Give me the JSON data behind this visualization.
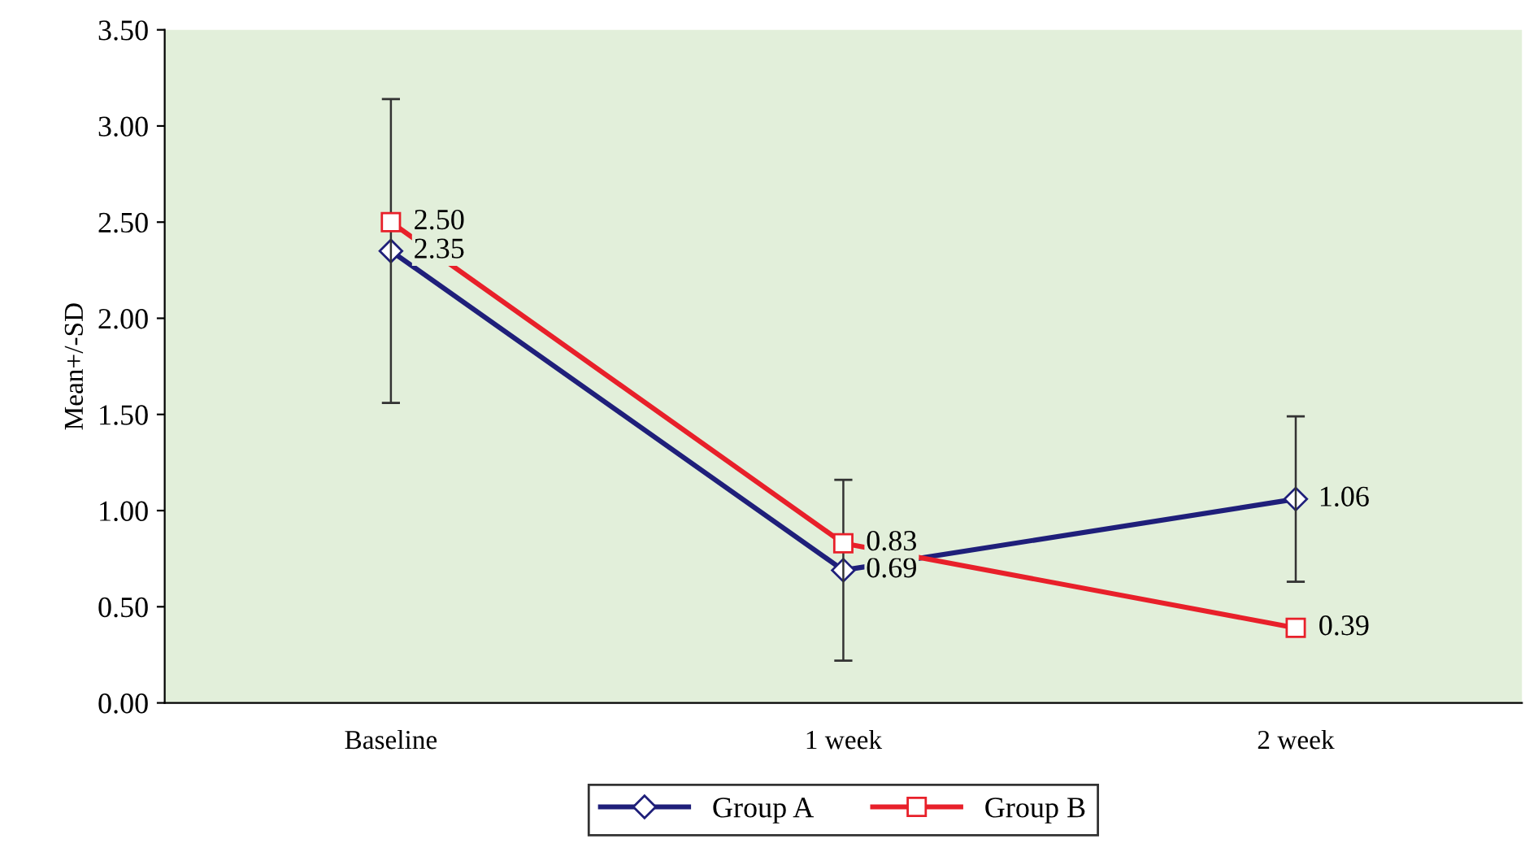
{
  "chart_data": {
    "type": "line",
    "ylabel": "Mean+/-SD",
    "categories": [
      "Baseline",
      "1 week",
      "2 week"
    ],
    "series": [
      {
        "name": "Group A",
        "color": "#1f1f7a",
        "values": [
          2.35,
          0.69,
          1.06
        ],
        "value_labels": [
          "2.35",
          "0.69",
          "1.06"
        ],
        "marker": "diamond",
        "errors": [
          0.79,
          0.47,
          0.43
        ]
      },
      {
        "name": "Group B",
        "color": "#e8202a",
        "values": [
          2.5,
          0.83,
          0.39
        ],
        "value_labels": [
          "2.50",
          "0.83",
          "0.39"
        ],
        "marker": "square"
      }
    ],
    "ylim": [
      0,
      3.5
    ],
    "yticks": [
      {
        "value": 0,
        "label": "0.00"
      },
      {
        "value": 0.5,
        "label": "0.50"
      },
      {
        "value": 1,
        "label": "1.00"
      },
      {
        "value": 1.5,
        "label": "1.50"
      },
      {
        "value": 2,
        "label": "2.00"
      },
      {
        "value": 2.5,
        "label": "2.50"
      },
      {
        "value": 3,
        "label": "3.00"
      },
      {
        "value": 3.5,
        "label": "3.50"
      }
    ],
    "legend": "bottom",
    "grid": false
  }
}
